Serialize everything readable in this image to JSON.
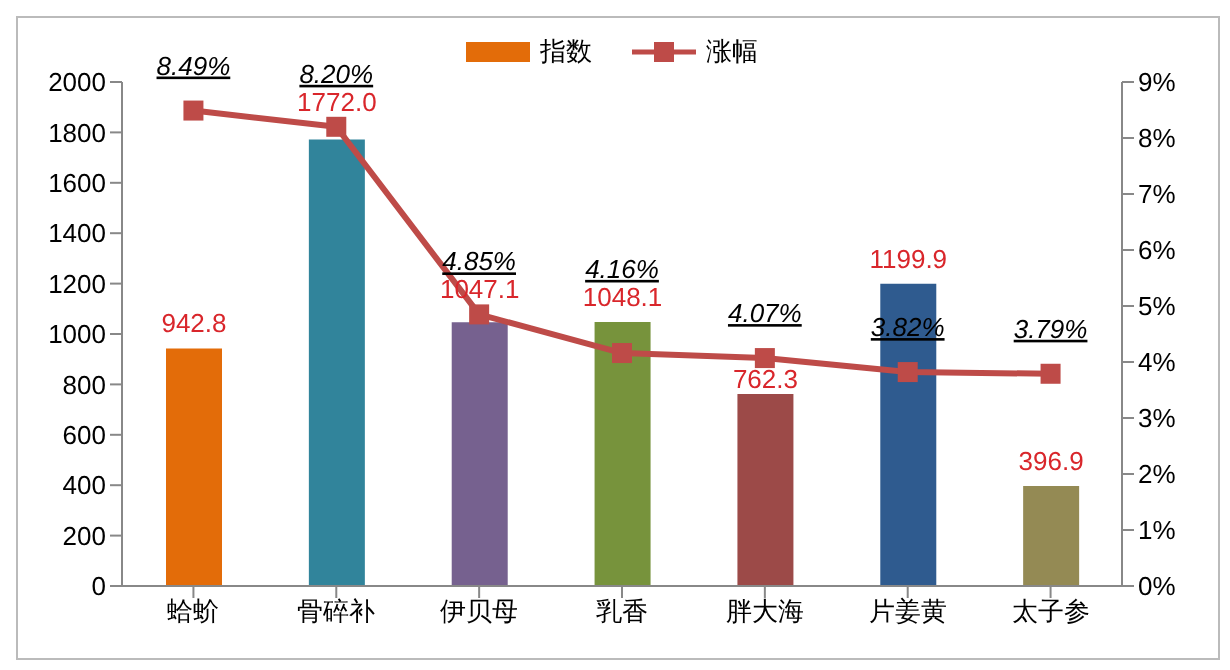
{
  "chart_data": {
    "type": "bar",
    "categories": [
      "蛤蚧",
      "骨碎补",
      "伊贝母",
      "乳香",
      "胖大海",
      "片姜黄",
      "太子参"
    ],
    "series": [
      {
        "name": "指数",
        "color": "#e36c09",
        "colors": [
          "#e36c09",
          "#31849b",
          "#76618f",
          "#77933c",
          "#9c4a48",
          "#2f5b8f",
          "#948a54"
        ],
        "values": [
          942.8,
          1772.0,
          1047.1,
          1048.1,
          762.3,
          1199.9,
          396.9
        ],
        "value_labels": [
          "942.8",
          "1772.0",
          "1047.1",
          "1048.1",
          "762.3",
          "1199.9",
          "396.9"
        ]
      },
      {
        "name": "涨幅",
        "type": "line",
        "axis": "y2",
        "color": "#be4b48",
        "marker": "square",
        "values": [
          8.49,
          8.2,
          4.85,
          4.16,
          4.07,
          3.82,
          3.79
        ],
        "value_labels": [
          "8.49%",
          "8.20%",
          "4.85%",
          "4.16%",
          "4.07%",
          "3.82%",
          "3.79%"
        ]
      }
    ],
    "ylim": [
      0,
      2000
    ],
    "yticks": [
      0,
      200,
      400,
      600,
      800,
      1000,
      1200,
      1400,
      1600,
      1800,
      2000
    ],
    "y2lim": [
      0,
      9
    ],
    "y2ticks": [
      {
        "value": 0,
        "label": "0%"
      },
      {
        "value": 1,
        "label": "1%"
      },
      {
        "value": 2,
        "label": "2%"
      },
      {
        "value": 3,
        "label": "3%"
      },
      {
        "value": 4,
        "label": "4%"
      },
      {
        "value": 5,
        "label": "5%"
      },
      {
        "value": 6,
        "label": "6%"
      },
      {
        "value": 7,
        "label": "7%"
      },
      {
        "value": 8,
        "label": "8%"
      },
      {
        "value": 9,
        "label": "9%"
      }
    ],
    "legend": "top",
    "grid": false
  }
}
